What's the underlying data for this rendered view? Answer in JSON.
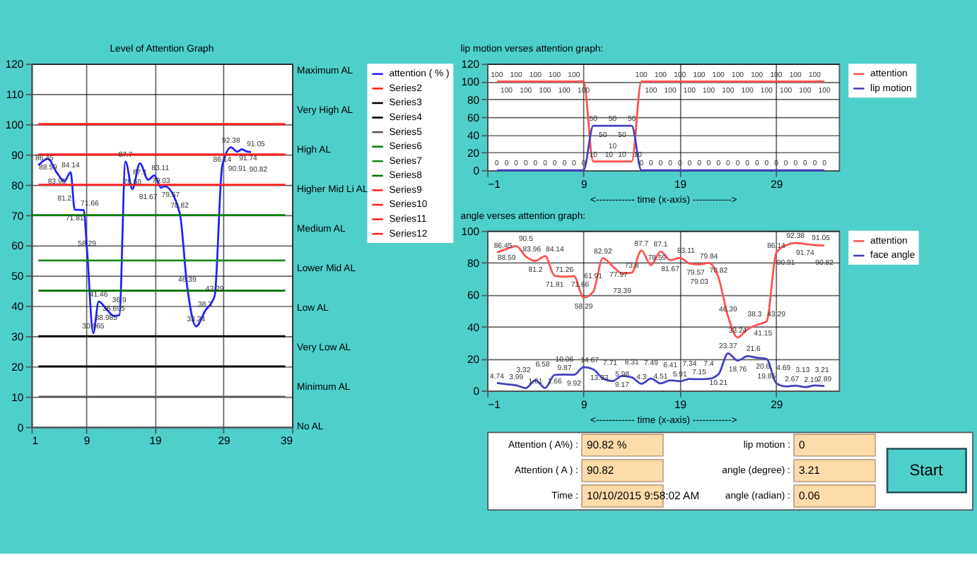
{
  "chart_data": [
    {
      "type": "line",
      "title": "Level of Attention Graph",
      "xlim": [
        1,
        39
      ],
      "xticks": [
        1,
        9,
        19,
        29,
        39
      ],
      "ylim": [
        0,
        120
      ],
      "yticks": [
        0,
        10,
        20,
        30,
        40,
        50,
        60,
        70,
        80,
        90,
        100,
        110,
        120
      ],
      "grid": true,
      "legend": "right",
      "series": [
        {
          "name": "attention ( % )",
          "color": "#2020ff",
          "type": "line",
          "x": [
            2,
            3.4,
            4.7,
            5.8,
            6.7,
            7.3,
            8.6,
            9.1,
            10,
            10.8,
            11.9,
            13,
            13.8,
            14.7,
            15.7,
            16.8,
            18,
            18.9,
            19.9,
            20.4,
            22.6,
            23.7,
            25,
            26.3,
            27.7,
            28.8,
            30.1,
            31,
            31.7,
            32.3,
            33
          ],
          "values": [
            86.45,
            88.59,
            83.96,
            81.2,
            84.14,
            71.81,
            71.66,
            58.29,
            30.965,
            41.46,
            38.985,
            36.695,
            36.9,
            87.7,
            78.59,
            87.1,
            81.67,
            83.11,
            79.03,
            79.57,
            70.82,
            46.39,
            33.24,
            38.3,
            43.29,
            86.14,
            92.38,
            90.91,
            91.74,
            91.05,
            90.82
          ],
          "value_labels": [
            "86.45",
            "88.59",
            "83.96",
            "81.2",
            "84.14",
            "71.81",
            "71.66",
            "58.29",
            "30.965",
            "41.46",
            "38.985",
            "36.695",
            "36.9",
            "87.7",
            "78.59",
            "87.1",
            "81.67",
            "83.11",
            "79.03",
            "79.57",
            "70.82",
            "46.39",
            "33.24",
            "38.3",
            "43.29",
            "86.14",
            "92.38",
            "90.91",
            "91.74",
            "91.05",
            "90.82"
          ]
        },
        {
          "name": "Series2",
          "color": "#ff2020",
          "type": "line",
          "x": [
            2,
            38
          ],
          "values": [
            100,
            100
          ]
        },
        {
          "name": "Series3",
          "color": "#000000",
          "type": "line",
          "x": [
            2,
            38
          ],
          "values": [
            30,
            30
          ]
        },
        {
          "name": "Series4",
          "color": "#000000",
          "type": "line",
          "x": [
            2,
            38
          ],
          "values": [
            20,
            20
          ]
        },
        {
          "name": "Series5",
          "color": "#555555",
          "type": "line",
          "x": [
            2,
            38
          ],
          "values": [
            10,
            10
          ]
        },
        {
          "name": "Series6",
          "color": "#008000",
          "type": "line",
          "x": [
            1,
            38
          ],
          "values": [
            70,
            70
          ]
        },
        {
          "name": "Series7",
          "color": "#1a8a1a",
          "type": "line",
          "x": [
            2,
            38
          ],
          "values": [
            55,
            55
          ]
        },
        {
          "name": "Series8",
          "color": "#007000",
          "type": "line",
          "x": [
            2,
            38
          ],
          "values": [
            45,
            45
          ]
        },
        {
          "name": "Series9",
          "color": "#ff2020",
          "type": "line",
          "x": [
            2,
            38
          ],
          "values": [
            90,
            90
          ]
        },
        {
          "name": "Series10",
          "color": "#ff2020",
          "type": "line",
          "x": [
            2,
            38
          ],
          "values": [
            80,
            80
          ]
        },
        {
          "name": "Series11",
          "color": "#ff2020",
          "type": "line",
          "x": [
            2,
            38
          ],
          "values": [
            90,
            90
          ]
        },
        {
          "name": "Series12",
          "color": "#ff2020",
          "type": "line",
          "x": [
            2,
            38
          ],
          "values": [
            100,
            100
          ]
        }
      ],
      "annotations": [
        "Maximum AL",
        "Very High AL",
        "High AL",
        "Higher Mid Li AL",
        "Medium AL",
        "Lower Mid AL",
        "Low AL",
        "Very Low AL",
        "Minimum AL",
        "No AL"
      ]
    },
    {
      "type": "line",
      "title": "lip motion verses attention graph:",
      "xlabel": "<------------ time (x-axis) ------------>",
      "xlim": [
        -1,
        35.5
      ],
      "xticks": [
        -1,
        9,
        19,
        29
      ],
      "ylim": [
        0,
        120
      ],
      "yticks": [
        0,
        20,
        40,
        60,
        80,
        100,
        120
      ],
      "grid": true,
      "legend": "right",
      "data_labels": true,
      "x": [
        0,
        1,
        2,
        3,
        4,
        5,
        6,
        7,
        8,
        9,
        10,
        11,
        12,
        13,
        14,
        15,
        16,
        17,
        18,
        19,
        20,
        21,
        22,
        23,
        24,
        25,
        26,
        27,
        28,
        29,
        30,
        31,
        32,
        33,
        34
      ],
      "series": [
        {
          "name": "attention",
          "color": "#ff5050",
          "type": "line",
          "values": [
            100,
            100,
            100,
            100,
            100,
            100,
            100,
            100,
            100,
            100,
            10,
            10,
            10,
            10,
            10,
            100,
            100,
            100,
            100,
            100,
            100,
            100,
            100,
            100,
            100,
            100,
            100,
            100,
            100,
            100,
            100,
            100,
            100,
            100,
            100
          ]
        },
        {
          "name": "lip motion",
          "color": "#4040c0",
          "type": "line",
          "values": [
            0,
            0,
            0,
            0,
            0,
            0,
            0,
            0,
            0,
            0,
            50,
            50,
            50,
            50,
            50,
            0,
            0,
            0,
            0,
            0,
            0,
            0,
            0,
            0,
            0,
            0,
            0,
            0,
            0,
            0,
            0,
            0,
            0,
            0,
            0
          ]
        }
      ]
    },
    {
      "type": "line",
      "title": "angle verses attention graph:",
      "xlabel": "<------------ time (x-axis) ------------>",
      "xlim": [
        -1,
        35.5
      ],
      "xticks": [
        -1,
        9,
        19,
        29
      ],
      "ylim": [
        0,
        100
      ],
      "yticks": [
        0,
        20,
        40,
        60,
        80,
        100
      ],
      "grid": true,
      "legend": "right",
      "data_labels": true,
      "x": [
        0,
        1,
        2,
        3,
        4,
        5,
        6,
        7,
        8,
        9,
        10,
        11,
        12,
        13,
        14,
        15,
        16,
        17,
        18,
        19,
        20,
        21,
        22,
        23,
        24,
        25,
        26,
        27,
        28,
        29,
        30,
        31,
        32,
        33,
        34
      ],
      "series": [
        {
          "name": "attention",
          "color": "#ff5050",
          "type": "line",
          "values": [
            86.45,
            88.59,
            90.5,
            83.96,
            81.2,
            84.14,
            71.81,
            71.26,
            71.66,
            58.29,
            61.91,
            82.92,
            77.97,
            73.39,
            73.8,
            87.7,
            78.59,
            87.1,
            81.67,
            83.11,
            79.57,
            79.03,
            79.84,
            70.82,
            46.39,
            33.24,
            38.3,
            41.15,
            43.29,
            86.14,
            90.91,
            92.38,
            91.74,
            91.05,
            90.82
          ]
        },
        {
          "name": "face angle",
          "color": "#4040c0",
          "type": "line",
          "values": [
            4.74,
            3.99,
            3.32,
            1.61,
            6.58,
            1.66,
            9.87,
            10.06,
            9.92,
            14.67,
            13.33,
            7.71,
            5.98,
            9.17,
            8.31,
            4.3,
            7.49,
            4.51,
            6.41,
            5.91,
            7.34,
            7.15,
            7.4,
            10.21,
            23.37,
            18.76,
            21.6,
            20.6,
            19.85,
            4.69,
            2.67,
            3.13,
            2.19,
            3.21,
            2.89
          ]
        }
      ]
    },
    {
      "type": "other",
      "annotations": [
        "Attention ( A%) :",
        "90.82 %",
        "lip motion :",
        "0",
        "Attention ( A ) :",
        "90.82",
        "angle (degree) :",
        "3.21",
        "Time :",
        "10/10/2015 9:58:02 AM",
        "angle (radian) :",
        "0.06",
        "Start"
      ]
    }
  ]
}
